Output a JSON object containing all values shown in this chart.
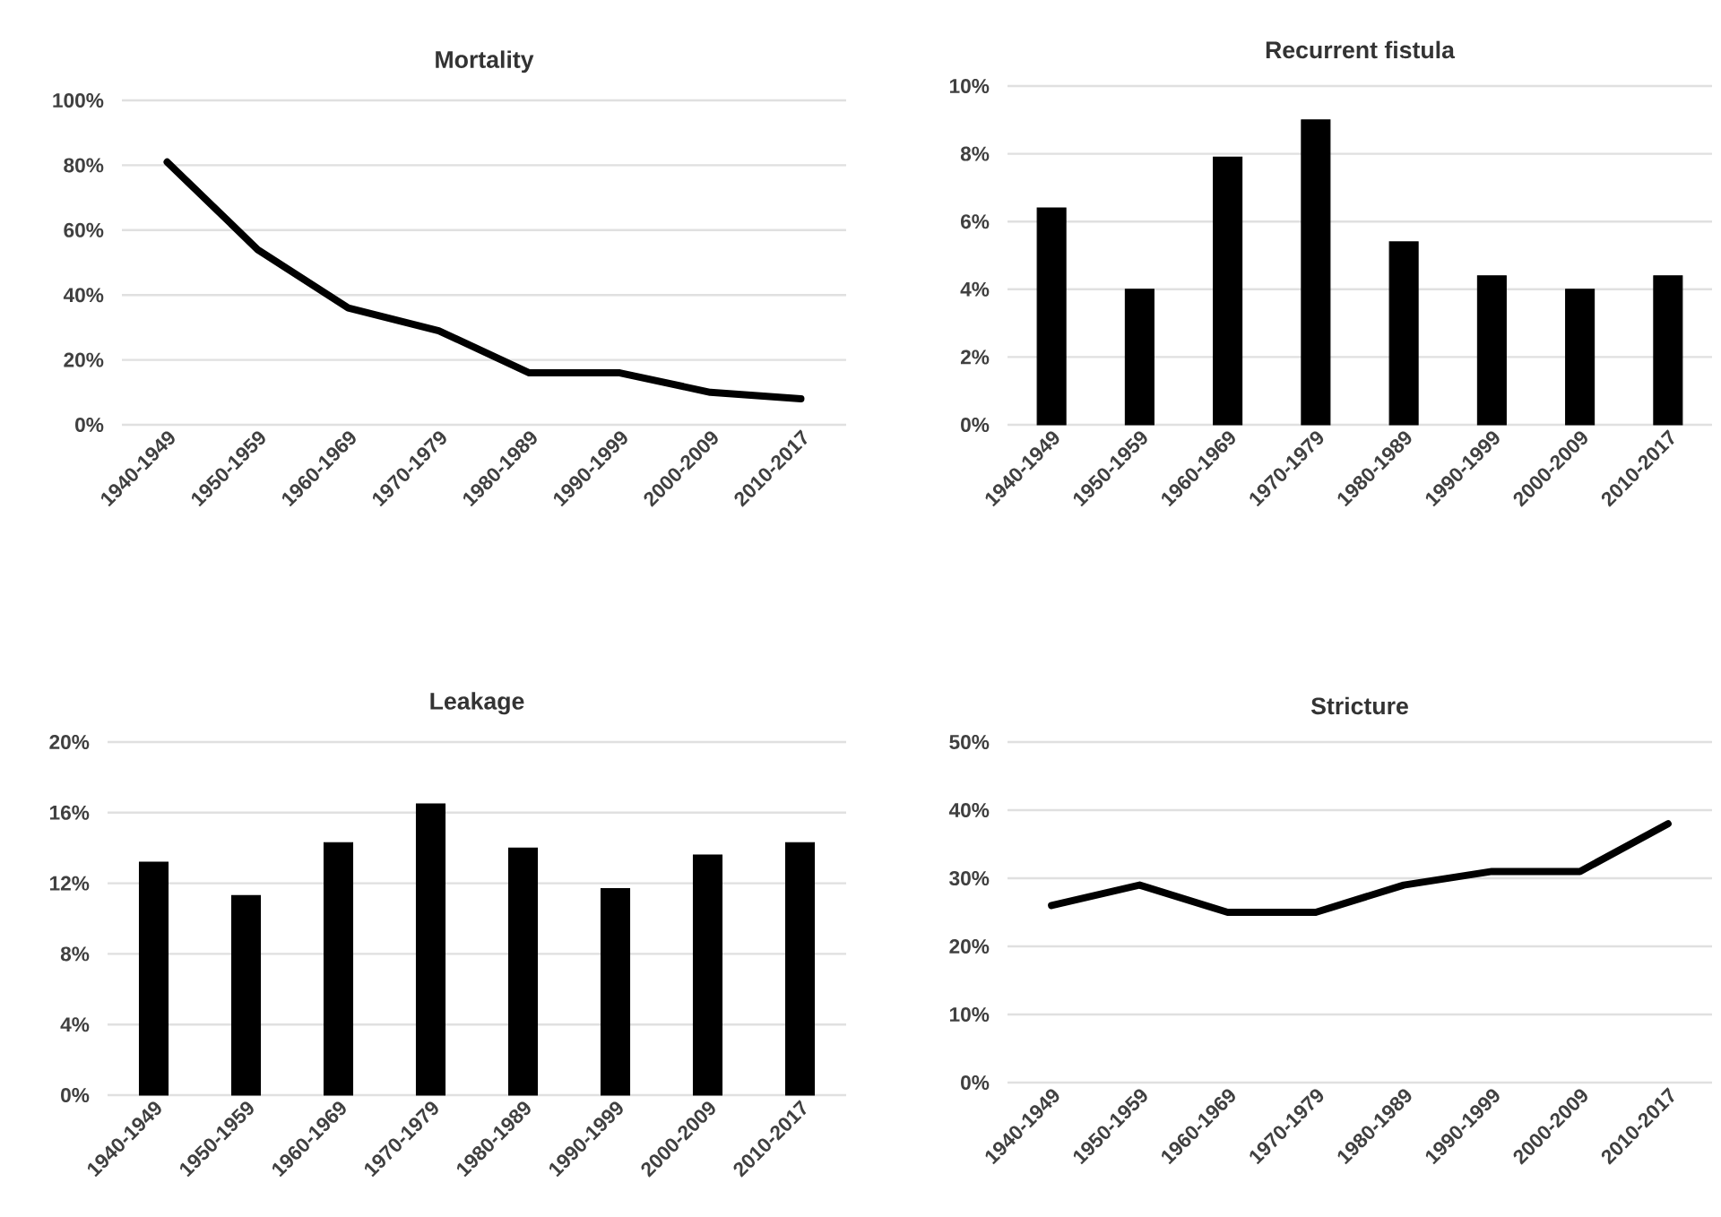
{
  "chart_data": [
    {
      "type": "line",
      "title": "Mortality",
      "categories": [
        "1940-1949",
        "1950-1959",
        "1960-1969",
        "1970-1979",
        "1980-1989",
        "1990-1999",
        "2000-2009",
        "2010-2017"
      ],
      "values": [
        81,
        54,
        36,
        29,
        16,
        16,
        10,
        8
      ],
      "color": "#000000",
      "marker": "none",
      "line_style": "solid",
      "ylim": [
        0,
        100
      ],
      "yticks": [
        {
          "value": 0,
          "label": "0%"
        },
        {
          "value": 20,
          "label": "20%"
        },
        {
          "value": 40,
          "label": "40%"
        },
        {
          "value": 60,
          "label": "60%"
        },
        {
          "value": 80,
          "label": "80%"
        },
        {
          "value": 100,
          "label": "100%"
        }
      ],
      "grid": "y"
    },
    {
      "type": "bar",
      "title": "Recurrent fistula",
      "categories": [
        "1940-1949",
        "1950-1959",
        "1960-1969",
        "1970-1979",
        "1980-1989",
        "1990-1999",
        "2000-2009",
        "2010-2017"
      ],
      "values": [
        6.4,
        4.0,
        7.9,
        9.0,
        5.4,
        4.4,
        4.0,
        4.4
      ],
      "color": "#000000",
      "ylim": [
        0,
        10
      ],
      "yticks": [
        {
          "value": 0,
          "label": "0%"
        },
        {
          "value": 2,
          "label": "2%"
        },
        {
          "value": 4,
          "label": "4%"
        },
        {
          "value": 6,
          "label": "6%"
        },
        {
          "value": 8,
          "label": "8%"
        },
        {
          "value": 10,
          "label": "10%"
        }
      ],
      "grid": "y"
    },
    {
      "type": "bar",
      "title": "Leakage",
      "categories": [
        "1940-1949",
        "1950-1959",
        "1960-1969",
        "1970-1979",
        "1980-1989",
        "1990-1999",
        "2000-2009",
        "2010-2017"
      ],
      "values": [
        13.2,
        11.3,
        14.3,
        16.5,
        14.0,
        11.7,
        13.6,
        14.3
      ],
      "color": "#000000",
      "ylim": [
        0,
        20
      ],
      "yticks": [
        {
          "value": 0,
          "label": "0%"
        },
        {
          "value": 4,
          "label": "4%"
        },
        {
          "value": 8,
          "label": "8%"
        },
        {
          "value": 12,
          "label": "12%"
        },
        {
          "value": 16,
          "label": "16%"
        },
        {
          "value": 20,
          "label": "20%"
        }
      ],
      "grid": "y"
    },
    {
      "type": "line",
      "title": "Stricture",
      "categories": [
        "1940-1949",
        "1950-1959",
        "1960-1969",
        "1970-1979",
        "1980-1989",
        "1990-1999",
        "2000-2009",
        "2010-2017"
      ],
      "values": [
        26,
        29,
        25,
        25,
        29,
        31,
        31,
        38
      ],
      "color": "#000000",
      "marker": "none",
      "line_style": "solid",
      "ylim": [
        0,
        50
      ],
      "yticks": [
        {
          "value": 0,
          "label": "0%"
        },
        {
          "value": 10,
          "label": "10%"
        },
        {
          "value": 20,
          "label": "20%"
        },
        {
          "value": 30,
          "label": "30%"
        },
        {
          "value": 40,
          "label": "40%"
        },
        {
          "value": 50,
          "label": "50%"
        }
      ],
      "grid": "y"
    }
  ]
}
